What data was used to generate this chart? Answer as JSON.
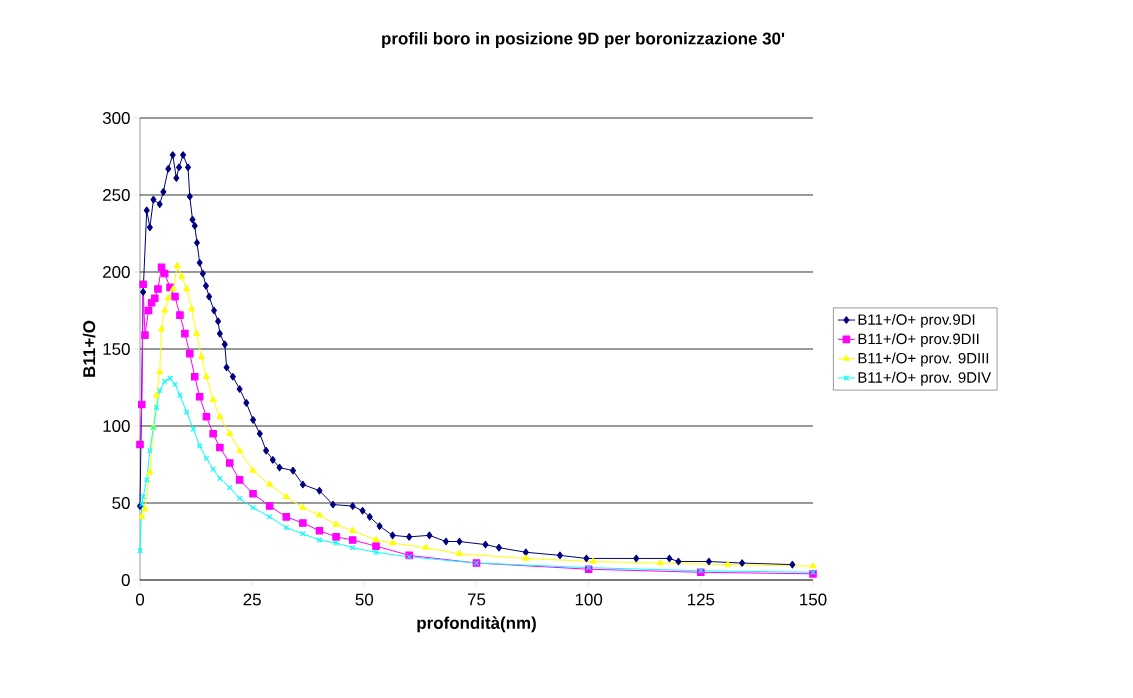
{
  "chart_data": {
    "type": "line",
    "title": "profili boro in posizione 9D per boronizzazione 30'",
    "xlabel": "profondità(nm)",
    "ylabel": "B11+/O",
    "xlim": [
      0,
      150
    ],
    "ylim": [
      0,
      300
    ],
    "xticks": [
      0,
      25,
      50,
      75,
      100,
      125,
      150
    ],
    "yticks": [
      0,
      50,
      100,
      150,
      200,
      250,
      300
    ],
    "grid": "y",
    "legend": "right",
    "line_style": "solid",
    "series": [
      {
        "name": "B11+/O+ prov.9DI",
        "color": "#000080",
        "marker": "diamond",
        "x": [
          0,
          0.7,
          1.5,
          2.2,
          3,
          4.4,
          5.2,
          6.3,
          7.3,
          8.1,
          8.7,
          9.6,
          10.7,
          11.1,
          11.7,
          12.2,
          12.7,
          13.3,
          14,
          14.7,
          15.4,
          16.5,
          17.4,
          17.8,
          18.9,
          19.3,
          20.7,
          22.2,
          23.7,
          25.2,
          26.7,
          28.1,
          29.6,
          31.1,
          34.1,
          36.3,
          40,
          43,
          47.4,
          49.6,
          51.2,
          53.4,
          56.3,
          60,
          64.5,
          68.2,
          71.2,
          77,
          80,
          86,
          93.6,
          99.5,
          110.6,
          118,
          120,
          126.8,
          134.2,
          145.4
        ],
        "values": [
          48,
          187,
          240,
          229,
          247,
          244,
          252,
          267,
          276,
          261,
          268,
          276,
          268,
          249,
          234,
          230,
          219,
          206,
          199,
          191,
          184,
          175,
          168,
          160,
          153,
          138,
          132,
          124,
          115,
          104,
          95,
          84,
          78,
          73,
          71,
          62,
          58,
          49,
          48,
          45,
          41,
          35,
          29,
          28,
          29,
          25,
          25,
          23,
          21,
          18,
          16,
          14,
          14,
          14,
          12,
          12,
          11,
          10
        ]
      },
      {
        "name": "B11+/O+ prov.9DII",
        "color": "#ff00ff",
        "marker": "square",
        "x": [
          0,
          0.4,
          0.7,
          1.1,
          1.9,
          2.6,
          3.3,
          4,
          4.8,
          5.5,
          6.7,
          7.8,
          8.9,
          10,
          11.1,
          12.2,
          13.3,
          14.8,
          16.3,
          17.8,
          20,
          22.2,
          25.2,
          28.9,
          32.6,
          36.3,
          40,
          43.7,
          47.4,
          52.6,
          60,
          75,
          100,
          125,
          150
        ],
        "values": [
          88,
          114,
          192,
          159,
          175,
          180,
          183,
          189,
          203,
          199,
          190,
          184,
          172,
          160,
          147,
          132,
          119,
          106,
          95,
          86,
          76,
          65,
          56,
          48,
          41,
          37,
          32,
          28,
          26,
          22,
          16,
          11,
          7,
          5,
          4
        ]
      },
      {
        "name": "B11+/O+ prov. 9DIII",
        "color": "#ffff00",
        "marker": "triangle",
        "x": [
          0.4,
          1.1,
          2.2,
          3,
          3.7,
          4.4,
          4.8,
          5.5,
          6.3,
          7.4,
          8.3,
          9.3,
          10.4,
          11.5,
          12.6,
          13.7,
          14.8,
          16.3,
          17.8,
          20,
          22.2,
          25.2,
          28.9,
          32.6,
          36.3,
          40,
          43.7,
          47.4,
          52.6,
          56.3,
          63.7,
          71.2,
          86,
          101,
          116,
          131,
          150
        ],
        "values": [
          41,
          46,
          70,
          99,
          120,
          135,
          163,
          175,
          183,
          189,
          204,
          197,
          189,
          176,
          160,
          145,
          132,
          117,
          106,
          95,
          84,
          71,
          62,
          54,
          47,
          42,
          36,
          32,
          26,
          24,
          21,
          17,
          14,
          12,
          11,
          10,
          9
        ]
      },
      {
        "name": "B11+/O+ prov. 9DIV",
        "color": "#00ffff",
        "marker": "cross",
        "x": [
          0,
          0.4,
          0.7,
          1.5,
          2.2,
          3,
          3.7,
          4.4,
          5.5,
          6.7,
          7.8,
          8.9,
          10.4,
          11.9,
          13.3,
          14.8,
          16.3,
          17.8,
          20,
          22.2,
          25.2,
          28.9,
          32.6,
          36.3,
          40,
          43.7,
          47.4,
          52.6,
          60,
          75,
          100,
          125,
          150
        ],
        "values": [
          19,
          49,
          54,
          65,
          84,
          99,
          112,
          123,
          129,
          131,
          127,
          120,
          109,
          98,
          87,
          79,
          72,
          66,
          60,
          53,
          47,
          41,
          34,
          30,
          26,
          24,
          21,
          18,
          15,
          11,
          8,
          6,
          5
        ]
      }
    ]
  }
}
